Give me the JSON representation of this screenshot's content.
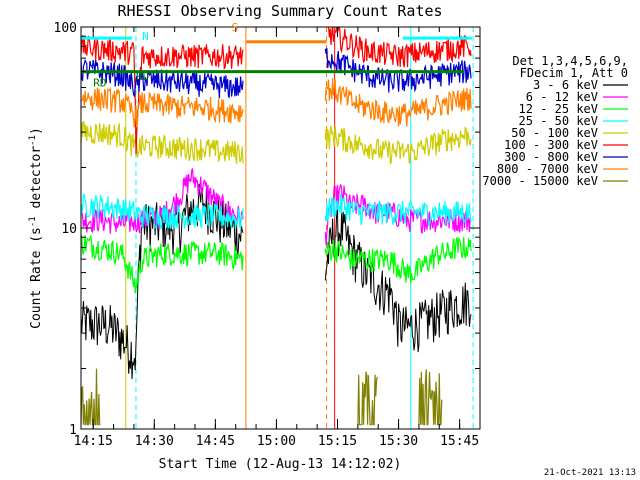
{
  "chart_data": {
    "type": "line",
    "title": "RHESSI Observing Summary Count Rates",
    "xlabel": "Start Time (12-Aug-13 14:12:02)",
    "ylabel_main": "Count Rate (s",
    "ylabel_sup": "-1",
    "ylabel_tail": " detector",
    "ylabel_close": ")",
    "y_scale": "log",
    "ylim": [
      1,
      100
    ],
    "xlim_minutes": [
      0,
      98
    ],
    "y_ticks": [
      {
        "v": 1,
        "label": "1"
      },
      {
        "v": 10,
        "label": "10"
      },
      {
        "v": 100,
        "label": "100"
      }
    ],
    "x_ticks": [
      {
        "m": 3,
        "label": "14:15"
      },
      {
        "m": 18,
        "label": "14:30"
      },
      {
        "m": 33,
        "label": "14:45"
      },
      {
        "m": 48,
        "label": "15:00"
      },
      {
        "m": 63,
        "label": "15:15"
      },
      {
        "m": 78,
        "label": "15:30"
      },
      {
        "m": 93,
        "label": "15:45"
      }
    ],
    "legend_header": [
      "Det 1,3,4,5,6,9,",
      "FDecim 1, Att 0"
    ],
    "series": [
      {
        "name": "3 - 6 keV",
        "color": "#000000",
        "x": [
          0,
          7,
          13.5,
          15,
          20,
          24,
          26,
          30,
          34,
          40,
          60,
          62,
          64,
          66,
          68,
          70,
          72,
          74,
          76,
          78,
          80,
          82,
          84,
          86,
          88,
          90,
          92,
          94,
          96
        ],
        "y": [
          3.4,
          3.3,
          2.3,
          10.5,
          10.5,
          10,
          12,
          13.5,
          11,
          9,
          6,
          9.5,
          10,
          8,
          7,
          6,
          5.5,
          5,
          4.8,
          3.3,
          3.2,
          3.3,
          3.4,
          3.6,
          3.8,
          4,
          4.2,
          4.3,
          4.5
        ]
      },
      {
        "name": "6 - 12 keV",
        "color": "#ff00ff",
        "x": [
          0,
          5,
          10,
          15,
          20,
          24,
          27,
          30,
          34,
          40,
          60,
          62,
          64,
          66,
          68,
          70,
          72,
          74,
          76,
          78,
          80,
          82,
          84,
          86,
          88,
          90,
          92,
          94,
          96
        ],
        "y": [
          11,
          11,
          10.5,
          11,
          11.5,
          14,
          18,
          16,
          13,
          11,
          9,
          14,
          15,
          13,
          13,
          13,
          12,
          12,
          12,
          11.5,
          11,
          11,
          11,
          11,
          11,
          11,
          11,
          11,
          11
        ]
      },
      {
        "name": "12 - 25 keV",
        "color": "#00ff00",
        "x": [
          0,
          5,
          10,
          13.5,
          15,
          20,
          25,
          30,
          34,
          40,
          60,
          62,
          64,
          66,
          68,
          70,
          72,
          74,
          76,
          78,
          80,
          82,
          84,
          86,
          88,
          90,
          92,
          94,
          96
        ],
        "y": [
          8.5,
          8,
          7.5,
          5,
          7,
          7.5,
          7.5,
          7.5,
          7.5,
          7,
          7.5,
          8,
          7.5,
          7,
          7,
          7,
          7,
          7,
          7,
          6.5,
          6,
          6,
          6.5,
          7,
          7.5,
          7.5,
          8,
          8,
          8
        ]
      },
      {
        "name": "25 - 50 keV",
        "color": "#00ffff",
        "x": [
          0,
          5,
          10,
          13.5,
          15,
          20,
          25,
          30,
          34,
          40,
          60,
          62,
          64,
          66,
          68,
          70,
          72,
          74,
          76,
          78,
          80,
          82,
          84,
          86,
          88,
          90,
          92,
          94,
          96
        ],
        "y": [
          13,
          13,
          12.5,
          12,
          11.5,
          11.5,
          11.5,
          11.5,
          11.5,
          11,
          12,
          13,
          13,
          12.5,
          12,
          12,
          12,
          12,
          12,
          12,
          12,
          12,
          12,
          12,
          12,
          12,
          12,
          12,
          12
        ]
      },
      {
        "name": "50 - 100 keV",
        "color": "#cccc00",
        "x": [
          0,
          5,
          10,
          13.5,
          15,
          20,
          25,
          30,
          34,
          40,
          60,
          62,
          64,
          66,
          68,
          70,
          72,
          74,
          76,
          78,
          80,
          82,
          84,
          86,
          88,
          90,
          92,
          94,
          96
        ],
        "y": [
          30,
          30,
          29,
          25,
          25.5,
          25.5,
          25,
          25,
          24,
          24,
          28,
          29,
          28,
          27,
          26,
          26,
          25,
          24,
          24,
          24,
          24,
          24,
          25,
          26,
          27,
          28,
          28,
          29,
          29
        ]
      },
      {
        "name": "100 - 300 keV",
        "color": "#ff0000",
        "x": [
          0,
          5,
          10,
          13,
          13.5,
          15,
          20,
          25,
          30,
          34,
          40,
          60,
          62,
          64,
          66,
          68,
          70,
          72,
          74,
          76,
          78,
          80,
          82,
          84,
          86,
          88,
          90,
          92,
          94,
          96
        ],
        "y": [
          80,
          78,
          76,
          75,
          23,
          72,
          72,
          72,
          72,
          72,
          72,
          95,
          92,
          88,
          84,
          80,
          77,
          75,
          74,
          73,
          72,
          73,
          74,
          75,
          76,
          77,
          78,
          79,
          80,
          80
        ]
      },
      {
        "name": "300 - 800 keV",
        "color": "#0000cc",
        "x": [
          0,
          5,
          10,
          13.5,
          15,
          20,
          25,
          30,
          34,
          40,
          60,
          62,
          64,
          66,
          68,
          70,
          72,
          74,
          76,
          78,
          80,
          82,
          84,
          86,
          88,
          90,
          92,
          94,
          96
        ],
        "y": [
          62,
          60,
          58,
          50,
          55,
          54,
          53,
          52,
          51,
          50,
          72,
          70,
          66,
          63,
          60,
          58,
          56,
          55,
          54,
          54,
          54,
          55,
          56,
          57,
          58,
          59,
          60,
          60,
          61
        ]
      },
      {
        "name": "800 - 7000 keV",
        "color": "#ff8000",
        "x": [
          0,
          5,
          10,
          13.5,
          15,
          20,
          25,
          30,
          34,
          40,
          60,
          62,
          64,
          66,
          68,
          70,
          72,
          74,
          76,
          78,
          80,
          82,
          84,
          86,
          88,
          90,
          92,
          94,
          96
        ],
        "y": [
          45,
          44,
          43,
          36,
          42,
          41,
          40,
          40,
          39,
          38,
          50,
          49,
          46,
          43,
          41,
          40,
          39,
          38,
          37,
          37,
          37,
          38,
          39,
          40,
          41,
          42,
          43,
          44,
          45
        ]
      },
      {
        "name": "7000 - 15000 keV",
        "color": "#808000",
        "x": [
          0,
          1,
          2,
          3,
          4,
          5,
          68,
          69,
          70,
          71,
          72,
          73,
          83,
          84,
          85,
          86,
          87,
          88,
          89
        ],
        "y": [
          1.9,
          1.2,
          1.8,
          1.1,
          1.9,
          1.3,
          1.9,
          1.2,
          1.8,
          1.1,
          1.9,
          1.2,
          1.9,
          1.3,
          1.8,
          1.1,
          1.9,
          1.2,
          1.8
        ]
      }
    ],
    "green_line_y": 60,
    "annotations": [
      {
        "label": "N",
        "m": 15,
        "y": 90,
        "color": "#00ffff"
      },
      {
        "label": "RD",
        "m": 13.5,
        "y": 57,
        "color": "#008000"
      },
      {
        "label": "RD",
        "m": 3,
        "y": 53,
        "color": "#008000"
      },
      {
        "label": "S",
        "m": 37,
        "y": 100,
        "color": "#ff8000"
      }
    ],
    "saa_bar": {
      "m0": 40.5,
      "m1": 60.3,
      "y": 98,
      "color": "#ff8000"
    },
    "cyan_bars": [
      {
        "m0": 0,
        "m1": 12.5,
        "y": 88
      },
      {
        "m0": 79,
        "m1": 96,
        "y": 88
      }
    ],
    "vlines": [
      {
        "m": 0,
        "color": "#00ffff",
        "dash": false
      },
      {
        "m": 13.5,
        "color": "#00ffff",
        "dash": true
      },
      {
        "m": 11,
        "color": "#cccc00",
        "dash": false
      },
      {
        "m": 40.5,
        "color": "#ff8000",
        "dash": false
      },
      {
        "m": 60.3,
        "color": "#ff8000",
        "dash": true
      },
      {
        "m": 62.3,
        "color": "#ff0000",
        "dash": false
      },
      {
        "m": 81,
        "color": "#00ffff",
        "dash": false
      },
      {
        "m": 96.3,
        "color": "#00ffff",
        "dash": true
      }
    ],
    "footer_date": "21-Oct-2021 13:13"
  }
}
